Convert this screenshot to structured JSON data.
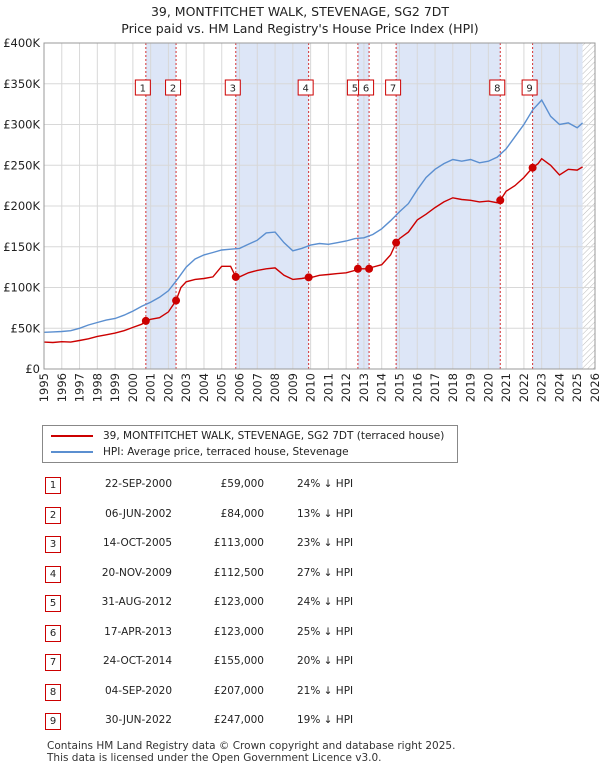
{
  "title": "39, MONTFITCHET WALK, STEVENAGE, SG2 7DT",
  "subtitle": "Price paid vs. HM Land Registry's House Price Index (HPI)",
  "colors": {
    "property": "#cc0000",
    "hpi": "#5b8fd0",
    "shade": "#dde6f7",
    "marker_line": "#cc0000"
  },
  "legend": {
    "property_label": "39, MONTFITCHET WALK, STEVENAGE, SG2 7DT (terraced house)",
    "hpi_label": "HPI: Average price, terraced house, Stevenage"
  },
  "sales": [
    {
      "num": "1",
      "date": "22-SEP-2000",
      "price": "£59,000",
      "hpi": "24% ↓ HPI"
    },
    {
      "num": "2",
      "date": "06-JUN-2002",
      "price": "£84,000",
      "hpi": "13% ↓ HPI"
    },
    {
      "num": "3",
      "date": "14-OCT-2005",
      "price": "£113,000",
      "hpi": "23% ↓ HPI"
    },
    {
      "num": "4",
      "date": "20-NOV-2009",
      "price": "£112,500",
      "hpi": "27% ↓ HPI"
    },
    {
      "num": "5",
      "date": "31-AUG-2012",
      "price": "£123,000",
      "hpi": "24% ↓ HPI"
    },
    {
      "num": "6",
      "date": "17-APR-2013",
      "price": "£123,000",
      "hpi": "25% ↓ HPI"
    },
    {
      "num": "7",
      "date": "24-OCT-2014",
      "price": "£155,000",
      "hpi": "20% ↓ HPI"
    },
    {
      "num": "8",
      "date": "04-SEP-2020",
      "price": "£207,000",
      "hpi": "21% ↓ HPI"
    },
    {
      "num": "9",
      "date": "30-JUN-2022",
      "price": "£247,000",
      "hpi": "19% ↓ HPI"
    }
  ],
  "footer": {
    "line1": "Contains HM Land Registry data © Crown copyright and database right 2025.",
    "line2": "This data is licensed under the Open Government Licence v3.0."
  },
  "chart_data": {
    "type": "line",
    "title": "39, MONTFITCHET WALK, STEVENAGE, SG2 7DT",
    "xlim": [
      1995,
      2026
    ],
    "ylim": [
      0,
      400000
    ],
    "x_ticks": [
      1995,
      1996,
      1997,
      1998,
      1999,
      2000,
      2001,
      2002,
      2003,
      2004,
      2005,
      2006,
      2007,
      2008,
      2009,
      2010,
      2011,
      2012,
      2013,
      2014,
      2015,
      2016,
      2017,
      2018,
      2019,
      2020,
      2021,
      2022,
      2023,
      2024,
      2025,
      2026
    ],
    "y_ticks": [
      0,
      50000,
      100000,
      150000,
      200000,
      250000,
      300000,
      350000,
      400000
    ],
    "y_tick_labels": [
      "£0",
      "£50K",
      "£100K",
      "£150K",
      "£200K",
      "£250K",
      "£300K",
      "£350K",
      "£400K"
    ],
    "grid": true,
    "series": [
      {
        "name": "39, MONTFITCHET WALK, STEVENAGE, SG2 7DT (terraced house)",
        "x": [
          1995.0,
          1995.5,
          1996.0,
          1996.5,
          1997.0,
          1997.5,
          1998.0,
          1998.5,
          1999.0,
          1999.5,
          2000.0,
          2000.5,
          2000.73,
          2001.0,
          2001.5,
          2002.0,
          2002.43,
          2002.7,
          2003.0,
          2003.5,
          2004.0,
          2004.5,
          2005.0,
          2005.5,
          2005.79,
          2006.0,
          2006.5,
          2007.0,
          2007.5,
          2008.0,
          2008.5,
          2009.0,
          2009.5,
          2009.89,
          2010.0,
          2010.5,
          2011.0,
          2011.5,
          2012.0,
          2012.5,
          2012.66,
          2013.0,
          2013.29,
          2013.5,
          2014.0,
          2014.5,
          2014.81,
          2015.0,
          2015.5,
          2016.0,
          2016.5,
          2017.0,
          2017.5,
          2018.0,
          2018.5,
          2019.0,
          2019.5,
          2020.0,
          2020.5,
          2020.67,
          2021.0,
          2021.5,
          2022.0,
          2022.49,
          2022.8,
          2023.0,
          2023.5,
          2024.0,
          2024.5,
          2025.0,
          2025.3
        ],
        "values": [
          33000,
          32500,
          33500,
          33000,
          35000,
          37000,
          40000,
          42000,
          44000,
          47000,
          51000,
          55000,
          59000,
          61000,
          63000,
          70000,
          84000,
          100000,
          107000,
          110000,
          111000,
          113000,
          126000,
          126000,
          113000,
          113000,
          118000,
          121000,
          123000,
          124000,
          115000,
          110000,
          111000,
          112500,
          112000,
          115000,
          116000,
          117000,
          118000,
          121000,
          123000,
          123000,
          123000,
          125000,
          128000,
          140000,
          155000,
          160000,
          168000,
          183000,
          190000,
          198000,
          205000,
          210000,
          208000,
          207000,
          205000,
          206000,
          204000,
          207000,
          218000,
          225000,
          235000,
          247000,
          252000,
          258000,
          250000,
          238000,
          245000,
          244000,
          248000
        ]
      },
      {
        "name": "HPI: Average price, terraced house, Stevenage",
        "x": [
          1995.0,
          1995.5,
          1996.0,
          1996.5,
          1997.0,
          1997.5,
          1998.0,
          1998.5,
          1999.0,
          1999.5,
          2000.0,
          2000.5,
          2001.0,
          2001.5,
          2002.0,
          2002.5,
          2003.0,
          2003.5,
          2004.0,
          2004.5,
          2005.0,
          2005.5,
          2006.0,
          2006.5,
          2007.0,
          2007.5,
          2008.0,
          2008.5,
          2009.0,
          2009.5,
          2010.0,
          2010.5,
          2011.0,
          2011.5,
          2012.0,
          2012.5,
          2013.0,
          2013.5,
          2014.0,
          2014.5,
          2015.0,
          2015.5,
          2016.0,
          2016.5,
          2017.0,
          2017.5,
          2018.0,
          2018.5,
          2019.0,
          2019.5,
          2020.0,
          2020.5,
          2021.0,
          2021.5,
          2022.0,
          2022.5,
          2023.0,
          2023.5,
          2024.0,
          2024.5,
          2025.0,
          2025.3
        ],
        "values": [
          45000,
          45500,
          46000,
          47000,
          50000,
          54000,
          57000,
          60000,
          62000,
          66000,
          71000,
          77000,
          82000,
          88000,
          96000,
          110000,
          125000,
          135000,
          140000,
          143000,
          146000,
          147000,
          148000,
          153000,
          158000,
          167000,
          168000,
          155000,
          145000,
          148000,
          152000,
          154000,
          153000,
          155000,
          157000,
          160000,
          161000,
          165000,
          172000,
          182000,
          193000,
          203000,
          220000,
          235000,
          245000,
          252000,
          257000,
          255000,
          257000,
          253000,
          255000,
          260000,
          270000,
          285000,
          300000,
          318000,
          330000,
          310000,
          300000,
          302000,
          296000,
          302000
        ]
      }
    ],
    "sale_markers": [
      {
        "num": "1",
        "x": 2000.73,
        "value": 59000
      },
      {
        "num": "2",
        "x": 2002.43,
        "value": 84000
      },
      {
        "num": "3",
        "x": 2005.79,
        "value": 113000
      },
      {
        "num": "4",
        "x": 2009.89,
        "value": 112500
      },
      {
        "num": "5",
        "x": 2012.66,
        "value": 123000
      },
      {
        "num": "6",
        "x": 2013.29,
        "value": 123000
      },
      {
        "num": "7",
        "x": 2014.81,
        "value": 155000
      },
      {
        "num": "8",
        "x": 2020.67,
        "value": 207000
      },
      {
        "num": "9",
        "x": 2022.49,
        "value": 247000
      }
    ],
    "shaded_ranges": [
      [
        2000.73,
        2002.43
      ],
      [
        2005.79,
        2009.89
      ],
      [
        2012.66,
        2013.29
      ],
      [
        2014.81,
        2020.67
      ],
      [
        2022.49,
        2025.3
      ]
    ],
    "hatch_after": 2025.3
  }
}
